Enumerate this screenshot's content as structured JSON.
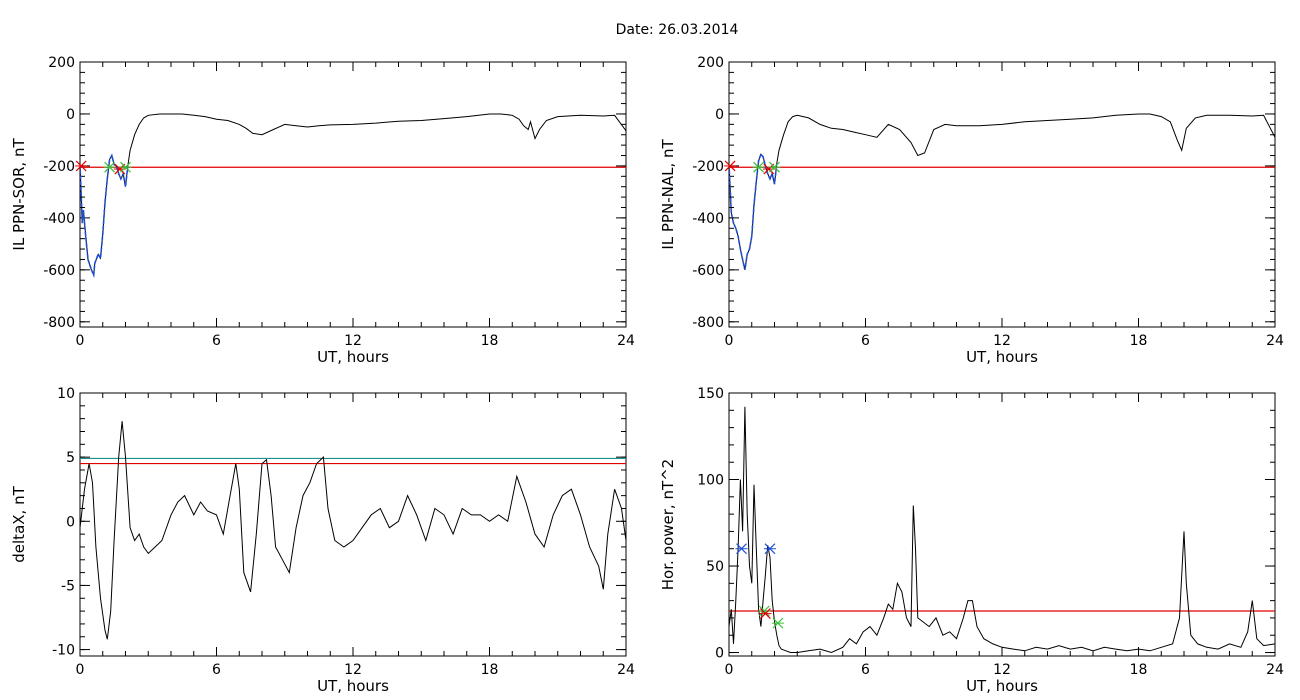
{
  "figure": {
    "title": "Date:  26.03.2014"
  },
  "colors": {
    "trace": "#000000",
    "threshold_red": "#e00000",
    "threshold_teal": "#1f8f8f",
    "highlight_blue": "#1e4fd8",
    "marker_green": "#38c038",
    "marker_red": "#e00000",
    "marker_blue": "#1e4fd8"
  },
  "chart_data": [
    {
      "id": "ppn-sor",
      "type": "line",
      "xlabel": "UT, hours",
      "ylabel": "IL PPN-SOR, nT",
      "xlim": [
        0,
        24
      ],
      "ylim": [
        -820,
        200
      ],
      "xticks": [
        "0",
        "6",
        "12",
        "18",
        "24"
      ],
      "yticks": [
        "200",
        "0",
        "-200",
        "-400",
        "-600",
        "-800"
      ],
      "ytick_values": [
        200,
        0,
        -200,
        -400,
        -600,
        -800
      ],
      "threshold": -205,
      "series": [
        {
          "x": [
            0,
            0.1,
            0.15,
            0.25,
            0.35,
            0.5,
            0.6,
            0.65,
            0.8,
            0.9,
            1.0,
            1.1,
            1.2,
            1.3,
            1.4,
            1.5,
            1.6,
            1.7,
            1.8,
            1.9,
            2.0,
            2.1,
            2.2,
            2.4,
            2.6,
            2.8,
            3.0,
            3.5,
            4,
            4.5,
            5,
            5.5,
            6,
            6.5,
            7,
            7.3,
            7.6,
            8.0,
            8.5,
            9,
            9.5,
            10,
            10.5,
            11,
            12,
            13,
            14,
            15,
            16,
            17,
            18,
            18.5,
            19,
            19.3,
            19.5,
            19.7,
            19.8,
            20.0,
            20.2,
            20.5,
            21,
            22,
            23,
            23.5,
            24
          ],
          "y": [
            -195,
            -420,
            -370,
            -470,
            -560,
            -600,
            -620,
            -575,
            -540,
            -555,
            -460,
            -340,
            -250,
            -175,
            -160,
            -195,
            -200,
            -230,
            -250,
            -230,
            -280,
            -200,
            -140,
            -80,
            -40,
            -15,
            -5,
            0,
            0,
            0,
            -5,
            -10,
            -20,
            -25,
            -40,
            -55,
            -75,
            -80,
            -60,
            -40,
            -45,
            -50,
            -45,
            -42,
            -40,
            -35,
            -28,
            -25,
            -18,
            -10,
            0,
            0,
            -5,
            -20,
            -45,
            -60,
            -30,
            -95,
            -60,
            -25,
            -10,
            -5,
            -8,
            -5,
            -65
          ]
        }
      ],
      "highlight_range": [
        0,
        2.1
      ],
      "markers": [
        {
          "x": 0.05,
          "y": -200,
          "color": "marker_red"
        },
        {
          "x": 1.3,
          "y": -205,
          "color": "marker_green"
        },
        {
          "x": 1.75,
          "y": -212,
          "color": "marker_red"
        },
        {
          "x": 2.0,
          "y": -205,
          "color": "marker_green"
        }
      ]
    },
    {
      "id": "ppn-nal",
      "type": "line",
      "xlabel": "UT, hours",
      "ylabel": "IL PPN-NAL, nT",
      "xlim": [
        0,
        24
      ],
      "ylim": [
        -820,
        200
      ],
      "xticks": [
        "0",
        "6",
        "12",
        "18",
        "24"
      ],
      "yticks": [
        "200",
        "0",
        "-200",
        "-400",
        "-600",
        "-800"
      ],
      "ytick_values": [
        200,
        0,
        -200,
        -400,
        -600,
        -800
      ],
      "threshold": -205,
      "series": [
        {
          "x": [
            0,
            0.1,
            0.2,
            0.3,
            0.4,
            0.5,
            0.6,
            0.7,
            0.8,
            0.9,
            1.0,
            1.1,
            1.2,
            1.3,
            1.4,
            1.5,
            1.6,
            1.7,
            1.8,
            1.9,
            2.0,
            2.1,
            2.2,
            2.4,
            2.6,
            2.8,
            3.0,
            3.5,
            4,
            4.5,
            5,
            5.5,
            6,
            6.5,
            7,
            7.5,
            8,
            8.3,
            8.6,
            9.0,
            9.5,
            10,
            11,
            12,
            13,
            14,
            15,
            16,
            17,
            18,
            18.5,
            19,
            19.4,
            19.7,
            19.9,
            20.1,
            20.5,
            21,
            22,
            23,
            23.5,
            24
          ],
          "y": [
            -195,
            -380,
            -420,
            -440,
            -470,
            -520,
            -560,
            -600,
            -540,
            -520,
            -470,
            -350,
            -260,
            -180,
            -155,
            -165,
            -200,
            -230,
            -250,
            -230,
            -270,
            -190,
            -140,
            -80,
            -30,
            -10,
            -5,
            -15,
            -40,
            -55,
            -60,
            -70,
            -80,
            -90,
            -40,
            -60,
            -110,
            -160,
            -150,
            -60,
            -40,
            -45,
            -45,
            -40,
            -30,
            -25,
            -20,
            -15,
            -5,
            0,
            0,
            -10,
            -30,
            -100,
            -140,
            -55,
            -15,
            -5,
            -5,
            -8,
            -5,
            -90
          ]
        }
      ],
      "highlight_range": [
        0,
        2.1
      ],
      "markers": [
        {
          "x": 0.05,
          "y": -200,
          "color": "marker_red"
        },
        {
          "x": 1.3,
          "y": -205,
          "color": "marker_green"
        },
        {
          "x": 1.75,
          "y": -212,
          "color": "marker_red"
        },
        {
          "x": 2.0,
          "y": -205,
          "color": "marker_green"
        }
      ]
    },
    {
      "id": "deltax",
      "type": "line",
      "xlabel": "UT, hours",
      "ylabel": "deltaX, nT",
      "xlim": [
        0,
        24
      ],
      "ylim": [
        -10.5,
        10
      ],
      "xticks": [
        "0",
        "6",
        "12",
        "18",
        "24"
      ],
      "yticks": [
        "10",
        "5",
        "0",
        "-5",
        "-10"
      ],
      "ytick_values": [
        10,
        5,
        0,
        -5,
        -10
      ],
      "thresholds": [
        {
          "value": 4.9,
          "color": "threshold_teal"
        },
        {
          "value": 4.5,
          "color": "threshold_red"
        }
      ],
      "series": [
        {
          "x": [
            0,
            0.2,
            0.4,
            0.55,
            0.7,
            0.9,
            1.1,
            1.2,
            1.35,
            1.5,
            1.7,
            1.85,
            2.0,
            2.2,
            2.4,
            2.6,
            2.8,
            3.0,
            3.3,
            3.6,
            4.0,
            4.3,
            4.6,
            5.0,
            5.3,
            5.6,
            6.0,
            6.3,
            6.6,
            6.85,
            7.0,
            7.2,
            7.5,
            7.75,
            8.0,
            8.2,
            8.4,
            8.6,
            8.9,
            9.2,
            9.5,
            9.8,
            10.1,
            10.4,
            10.7,
            10.9,
            11.2,
            11.6,
            12.0,
            12.4,
            12.8,
            13.2,
            13.6,
            14.0,
            14.4,
            14.8,
            15.2,
            15.6,
            16.0,
            16.4,
            16.8,
            17.2,
            17.6,
            18.0,
            18.4,
            18.8,
            19.2,
            19.6,
            20.0,
            20.4,
            20.8,
            21.2,
            21.6,
            22.0,
            22.4,
            22.8,
            23.0,
            23.2,
            23.5,
            23.8,
            24.0
          ],
          "y": [
            -0.5,
            2.5,
            4.5,
            3.0,
            -2.0,
            -6.0,
            -8.5,
            -9.2,
            -7.0,
            -1.5,
            5.0,
            7.8,
            5.0,
            -0.5,
            -1.5,
            -1.0,
            -2.0,
            -2.5,
            -2.0,
            -1.5,
            0.5,
            1.5,
            2.0,
            0.5,
            1.5,
            0.8,
            0.5,
            -1.0,
            2.0,
            4.5,
            2.5,
            -4.0,
            -5.5,
            -1.0,
            4.5,
            4.8,
            2.0,
            -2.0,
            -3.0,
            -4.0,
            -0.5,
            2.0,
            3.0,
            4.5,
            5.0,
            1.0,
            -1.5,
            -2.0,
            -1.5,
            -0.5,
            0.5,
            1.0,
            -0.5,
            0.0,
            2.0,
            0.5,
            -1.5,
            1.0,
            0.5,
            -1.0,
            1.0,
            0.5,
            0.5,
            0.0,
            0.5,
            0.0,
            3.5,
            1.5,
            -1.0,
            -2.0,
            0.5,
            2.0,
            2.5,
            0.5,
            -2.0,
            -3.5,
            -5.3,
            -1.0,
            2.5,
            1.0,
            -1.5
          ]
        }
      ]
    },
    {
      "id": "hor-power",
      "type": "line",
      "xlabel": "UT, hours",
      "ylabel": "Hor. power, nT^2",
      "xlim": [
        0,
        24
      ],
      "ylim": [
        -2,
        150
      ],
      "xticks": [
        "0",
        "6",
        "12",
        "18",
        "24"
      ],
      "yticks": [
        "150",
        "100",
        "50",
        "0"
      ],
      "ytick_values": [
        150,
        100,
        50,
        0
      ],
      "threshold": 24,
      "series": [
        {
          "x": [
            0,
            0.1,
            0.2,
            0.3,
            0.4,
            0.5,
            0.6,
            0.7,
            0.8,
            0.9,
            1.0,
            1.1,
            1.2,
            1.3,
            1.4,
            1.5,
            1.6,
            1.7,
            1.8,
            1.9,
            2.0,
            2.1,
            2.2,
            2.3,
            2.5,
            2.7,
            3.0,
            3.5,
            4,
            4.5,
            5,
            5.3,
            5.6,
            5.9,
            6.2,
            6.5,
            6.8,
            7.0,
            7.2,
            7.4,
            7.6,
            7.8,
            8.0,
            8.1,
            8.2,
            8.3,
            8.5,
            8.8,
            9.1,
            9.4,
            9.7,
            10.0,
            10.3,
            10.5,
            10.7,
            10.9,
            11.2,
            11.6,
            12.0,
            12.5,
            13,
            13.5,
            14,
            14.5,
            15,
            15.5,
            16,
            16.5,
            17,
            17.5,
            18,
            18.5,
            19,
            19.5,
            19.8,
            20.0,
            20.1,
            20.3,
            20.6,
            21,
            21.5,
            22,
            22.5,
            22.8,
            23.0,
            23.2,
            23.5,
            24.0
          ],
          "y": [
            15,
            25,
            5,
            30,
            60,
            100,
            70,
            142,
            80,
            50,
            40,
            97,
            60,
            25,
            15,
            30,
            45,
            62,
            55,
            30,
            18,
            10,
            4,
            2,
            1,
            0,
            0,
            1,
            2,
            0,
            3,
            8,
            5,
            12,
            15,
            10,
            20,
            28,
            25,
            40,
            35,
            20,
            15,
            85,
            60,
            20,
            18,
            15,
            20,
            10,
            12,
            8,
            20,
            30,
            30,
            15,
            8,
            5,
            3,
            2,
            1,
            3,
            2,
            4,
            2,
            3,
            1,
            3,
            2,
            1,
            2,
            1,
            3,
            5,
            20,
            70,
            40,
            10,
            5,
            3,
            2,
            5,
            3,
            12,
            30,
            8,
            4,
            5
          ]
        }
      ],
      "highlight_range": null,
      "markers": [
        {
          "x": 0.55,
          "y": 60,
          "color": "marker_blue"
        },
        {
          "x": 1.55,
          "y": 24,
          "color": "marker_green"
        },
        {
          "x": 1.6,
          "y": 22.5,
          "color": "marker_red"
        },
        {
          "x": 1.8,
          "y": 60,
          "color": "marker_blue"
        },
        {
          "x": 2.15,
          "y": 17,
          "color": "marker_green"
        }
      ]
    }
  ]
}
